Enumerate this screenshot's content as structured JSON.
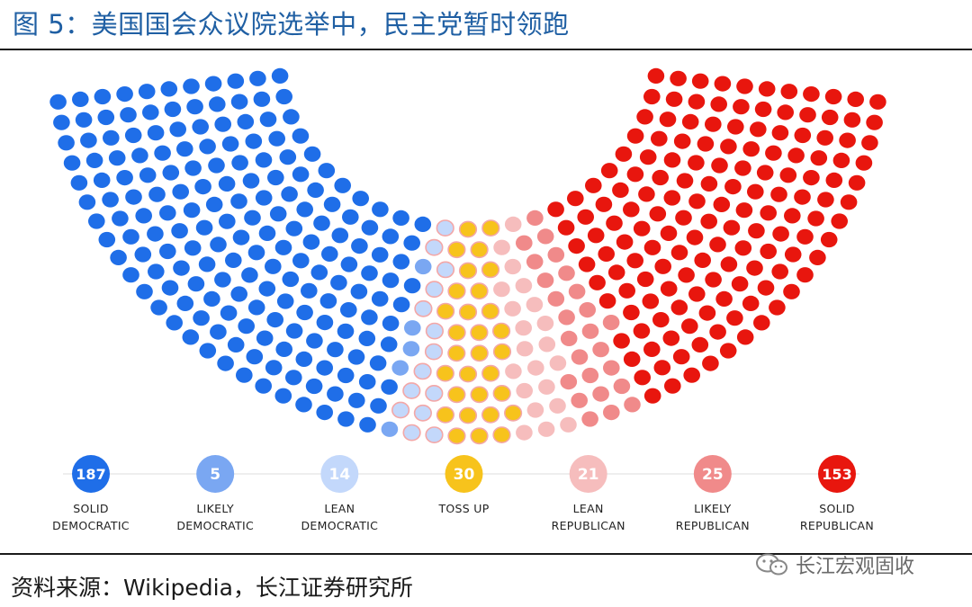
{
  "title": "图 5：美国国会众议院选举中，民主党暂时领跑",
  "source": "资料来源：Wikipedia，长江证券研究所",
  "watermark": {
    "icon": "wechat-icon",
    "text": "长江宏观固收"
  },
  "chart_data": {
    "type": "parliament",
    "categories": [
      {
        "key": "solid-democratic",
        "value": 187,
        "label_lines": [
          "SOLID",
          "DEMOCRATIC"
        ],
        "color": "#1f6ee8"
      },
      {
        "key": "likely-democratic",
        "value": 5,
        "label_lines": [
          "LIKELY",
          "DEMOCRATIC"
        ],
        "color": "#7aa7f2"
      },
      {
        "key": "lean-democratic",
        "value": 14,
        "label_lines": [
          "LEAN",
          "DEMOCRATIC"
        ],
        "color": "#c3d8fb"
      },
      {
        "key": "toss-up",
        "value": 30,
        "label_lines": [
          "TOSS UP"
        ],
        "color": "#f7c31c"
      },
      {
        "key": "lean-republican",
        "value": 21,
        "label_lines": [
          "LEAN",
          "REPUBLICAN"
        ],
        "color": "#f6bdbd"
      },
      {
        "key": "likely-republican",
        "value": 25,
        "label_lines": [
          "LIKELY",
          "REPUBLICAN"
        ],
        "color": "#f08a8a"
      },
      {
        "key": "solid-republican",
        "value": 153,
        "label_lines": [
          "SOLID",
          "REPUBLICAN"
        ],
        "color": "#e8160e"
      }
    ],
    "total_seats": 435,
    "neutral_color": "#f6cccc"
  }
}
